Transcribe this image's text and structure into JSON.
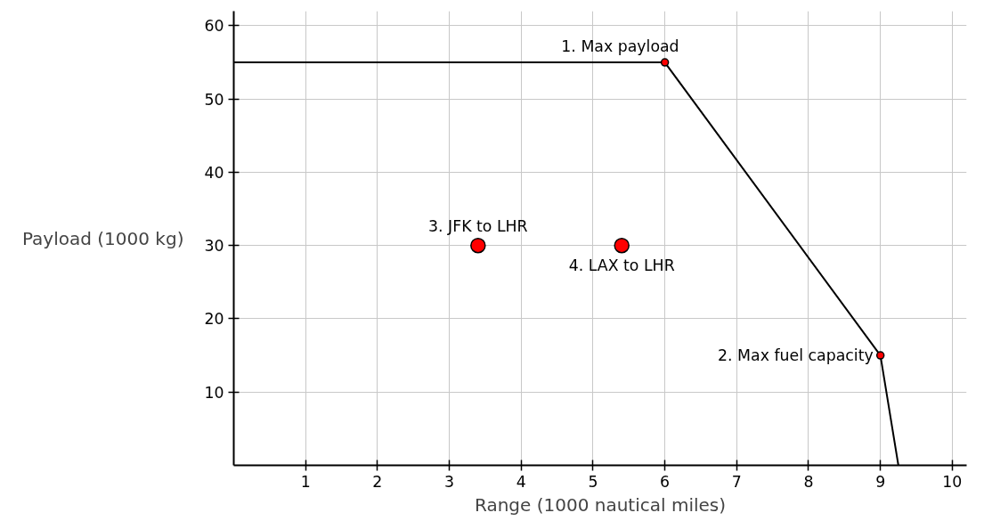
{
  "chart_data": {
    "type": "line",
    "xlabel": "Range (1000 nautical miles)",
    "ylabel": "Payload (1000 kg)",
    "xlim": [
      0,
      10.2
    ],
    "ylim": [
      0,
      62
    ],
    "xticks": [
      1,
      2,
      3,
      4,
      5,
      6,
      7,
      8,
      9,
      10
    ],
    "yticks": [
      10,
      20,
      30,
      40,
      50,
      60
    ],
    "grid": true,
    "series": [
      {
        "color": "#000000",
        "x": [
          0,
          6,
          9,
          9.25
        ],
        "values": [
          55,
          55,
          15,
          0
        ]
      },
      {
        "type": "bubble",
        "color": "#ff0000",
        "x": [
          6,
          9,
          3.4,
          5.4
        ],
        "values": [
          55,
          15,
          30,
          30
        ],
        "sizes": [
          0.25,
          0.25,
          1,
          1
        ]
      }
    ],
    "annotations": [
      {
        "text": "1. Max payload",
        "x": 6,
        "y": 55
      },
      {
        "text": "2. Max fuel capacity",
        "x": 9,
        "y": 15
      },
      {
        "text": "3. JFK to LHR",
        "x": 3.4,
        "y": 30
      },
      {
        "text": "4. LAX to LHR",
        "x": 5.4,
        "y": 30
      }
    ]
  }
}
